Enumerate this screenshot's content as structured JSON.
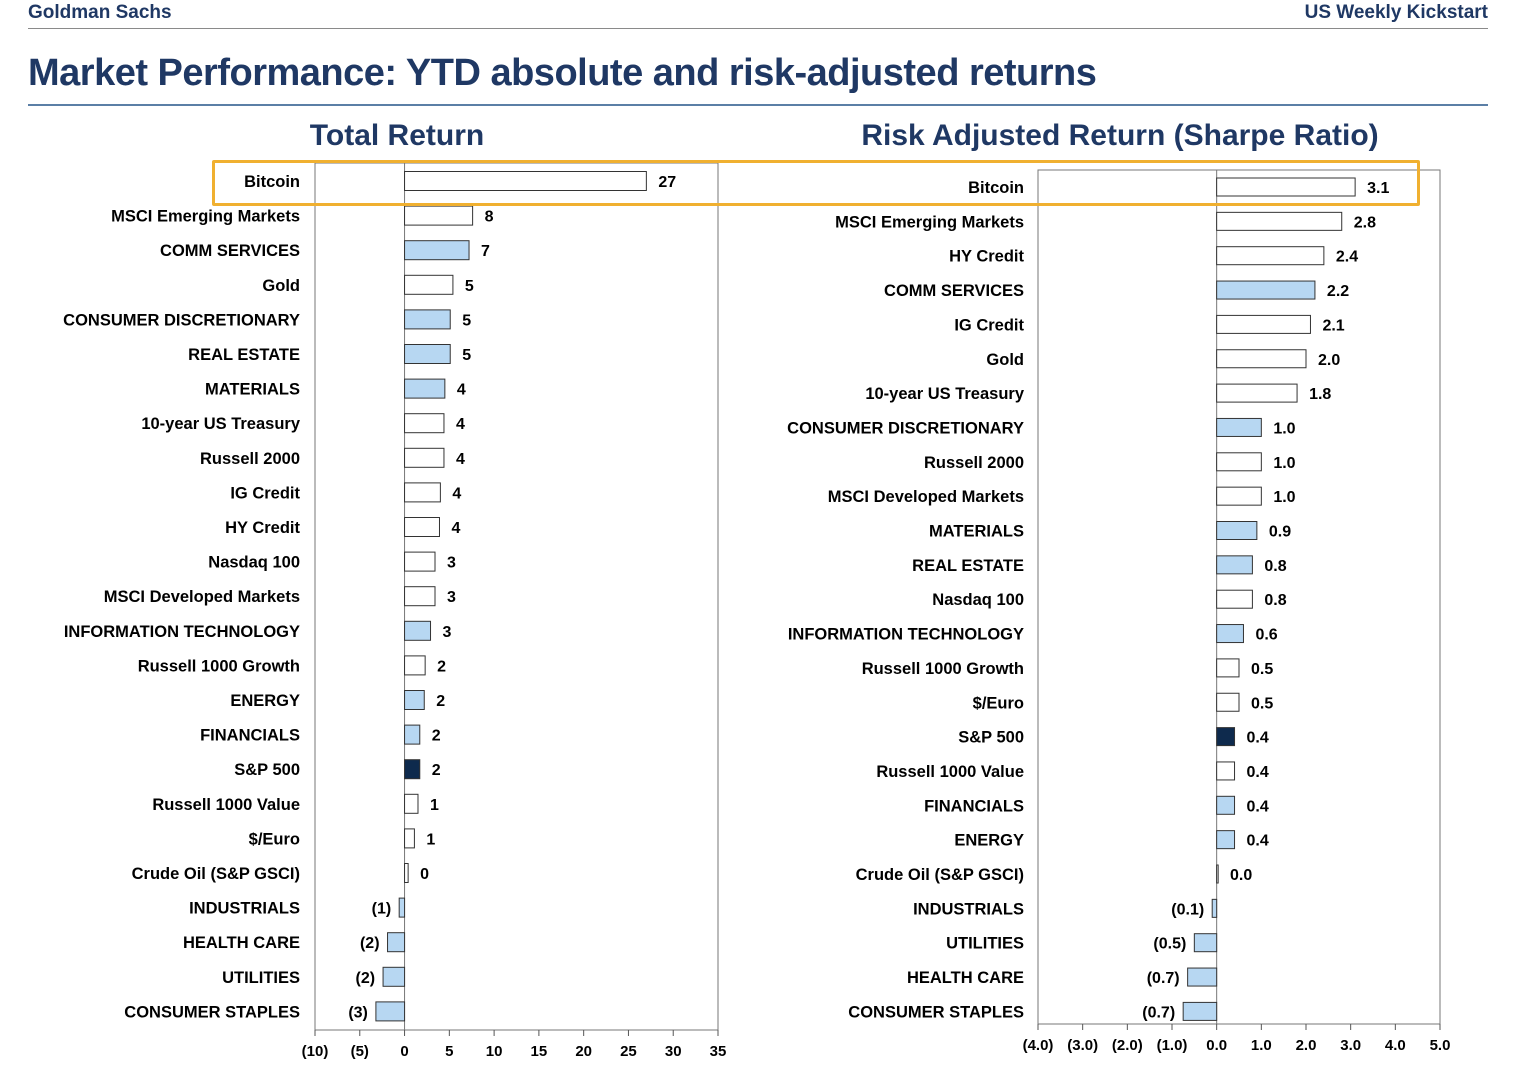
{
  "header": {
    "brand": "Goldman Sachs",
    "report": "US Weekly Kickstart"
  },
  "title": "Market Performance: YTD absolute and risk-adjusted returns",
  "colors": {
    "white_bar": "#ffffff",
    "sector_bar": "#b7d7f2",
    "sp500_bar": "#0e2a4d",
    "highlight": "#f0b030",
    "title": "#1f3864"
  },
  "chart_data": [
    {
      "type": "bar",
      "orientation": "horizontal",
      "title": "Total Return",
      "xlim": [
        -10,
        35
      ],
      "xticks": [
        -10,
        -5,
        0,
        5,
        10,
        15,
        20,
        25,
        30,
        35
      ],
      "xtick_labels": [
        "(10)",
        "(5)",
        "0",
        "5",
        "10",
        "15",
        "20",
        "25",
        "30",
        "35"
      ],
      "categories": [
        "Bitcoin",
        "MSCI Emerging Markets",
        "COMM SERVICES",
        "Gold",
        "CONSUMER DISCRETIONARY",
        "REAL ESTATE",
        "MATERIALS",
        "10-year US Treasury",
        "Russell 2000",
        "IG Credit",
        "HY Credit",
        "Nasdaq 100",
        "MSCI Developed Markets",
        "INFORMATION TECHNOLOGY",
        "Russell 1000 Growth",
        "ENERGY",
        "FINANCIALS",
        "S&P 500",
        "Russell 1000 Value",
        "$/Euro",
        "Crude Oil (S&P GSCI)",
        "INDUSTRIALS",
        "HEALTH CARE",
        "UTILITIES",
        "CONSUMER STAPLES"
      ],
      "values": [
        27,
        7.6,
        7.2,
        5.4,
        5.1,
        5.1,
        4.5,
        4.4,
        4.4,
        4.0,
        3.9,
        3.4,
        3.4,
        2.9,
        2.3,
        2.2,
        1.7,
        1.7,
        1.5,
        1.1,
        0.4,
        -0.6,
        -1.9,
        -2.4,
        -3.2
      ],
      "labels": [
        "27",
        "8",
        "7",
        "5",
        "5",
        "5",
        "4",
        "4",
        "4",
        "4",
        "4",
        "3",
        "3",
        "3",
        "2",
        "2",
        "2",
        "2",
        "1",
        "1",
        "0",
        "(1)",
        "(2)",
        "(2)",
        "(3)"
      ],
      "styles": [
        "white",
        "white",
        "blue",
        "white",
        "blue",
        "blue",
        "blue",
        "white",
        "white",
        "white",
        "white",
        "white",
        "white",
        "blue",
        "white",
        "blue",
        "blue",
        "dark",
        "white",
        "white",
        "white",
        "blue",
        "blue",
        "blue",
        "blue"
      ],
      "highlighted": "Bitcoin"
    },
    {
      "type": "bar",
      "orientation": "horizontal",
      "title": "Risk Adjusted Return (Sharpe Ratio)",
      "xlim": [
        -4,
        5
      ],
      "xticks": [
        -4,
        -3,
        -2,
        -1,
        0,
        1,
        2,
        3,
        4,
        5
      ],
      "xtick_labels": [
        "(4.0)",
        "(3.0)",
        "(2.0)",
        "(1.0)",
        "0.0",
        "1.0",
        "2.0",
        "3.0",
        "4.0",
        "5.0"
      ],
      "categories": [
        "Bitcoin",
        "MSCI Emerging Markets",
        "HY Credit",
        "COMM SERVICES",
        "IG Credit",
        "Gold",
        "10-year US Treasury",
        "CONSUMER DISCRETIONARY",
        "Russell 2000",
        "MSCI Developed Markets",
        "MATERIALS",
        "REAL ESTATE",
        "Nasdaq 100",
        "INFORMATION TECHNOLOGY",
        "Russell 1000 Growth",
        "$/Euro",
        "S&P 500",
        "Russell 1000 Value",
        "FINANCIALS",
        "ENERGY",
        "Crude Oil (S&P GSCI)",
        "INDUSTRIALS",
        "UTILITIES",
        "HEALTH CARE",
        "CONSUMER STAPLES"
      ],
      "values": [
        3.1,
        2.8,
        2.4,
        2.2,
        2.1,
        2.0,
        1.8,
        1.0,
        1.0,
        1.0,
        0.9,
        0.8,
        0.8,
        0.6,
        0.5,
        0.5,
        0.4,
        0.4,
        0.4,
        0.4,
        0.03,
        -0.1,
        -0.5,
        -0.65,
        -0.75
      ],
      "labels": [
        "3.1",
        "2.8",
        "2.4",
        "2.2",
        "2.1",
        "2.0",
        "1.8",
        "1.0",
        "1.0",
        "1.0",
        "0.9",
        "0.8",
        "0.8",
        "0.6",
        "0.5",
        "0.5",
        "0.4",
        "0.4",
        "0.4",
        "0.4",
        "0.0",
        "(0.1)",
        "(0.5)",
        "(0.7)",
        "(0.7)"
      ],
      "styles": [
        "white",
        "white",
        "white",
        "blue",
        "white",
        "white",
        "white",
        "blue",
        "white",
        "white",
        "blue",
        "blue",
        "white",
        "blue",
        "white",
        "white",
        "dark",
        "white",
        "blue",
        "blue",
        "white",
        "blue",
        "blue",
        "blue",
        "blue"
      ],
      "highlighted": "Bitcoin"
    }
  ]
}
